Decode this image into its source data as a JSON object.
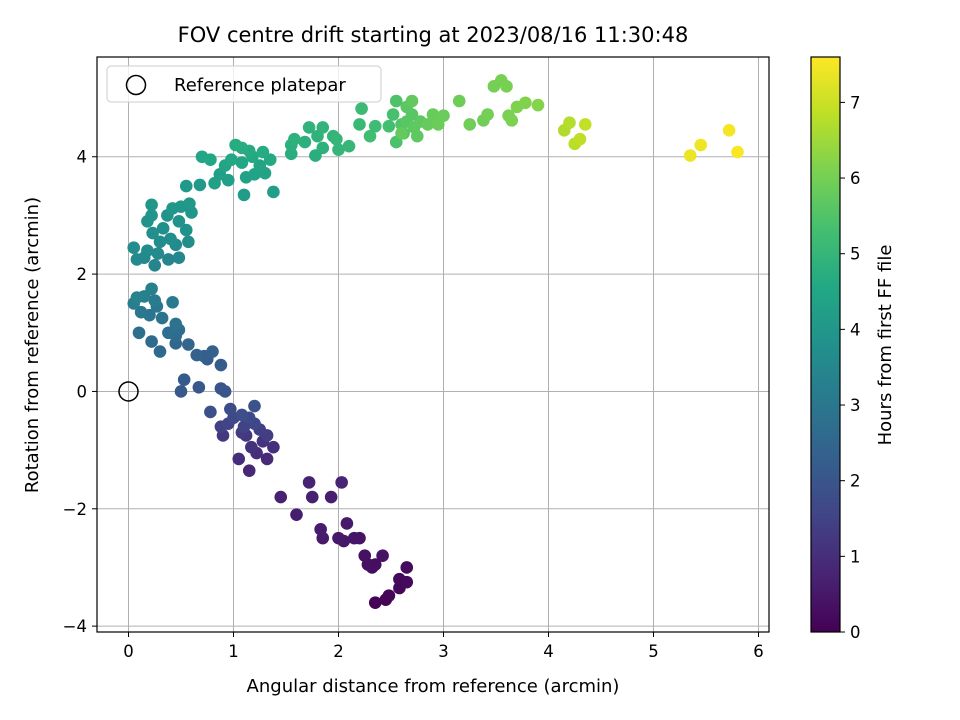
{
  "chart_data": {
    "type": "scatter",
    "title": "FOV centre drift starting at 2023/08/16 11:30:48",
    "xlabel": "Angular distance from reference (arcmin)",
    "ylabel": "Rotation from reference (arcmin)",
    "xlim": [
      -0.3,
      6.1
    ],
    "ylim": [
      -4.1,
      5.7
    ],
    "xticks": [
      0,
      1,
      2,
      3,
      4,
      5,
      6
    ],
    "xtick_labels": [
      "0",
      "1",
      "2",
      "3",
      "4",
      "5",
      "6"
    ],
    "yticks": [
      -4,
      -2,
      0,
      2,
      4
    ],
    "ytick_labels": [
      "−4",
      "−2",
      "0",
      "2",
      "4"
    ],
    "grid": true,
    "legend": {
      "position": "top-left",
      "entries": [
        "Reference platepar"
      ]
    },
    "reference_point": {
      "x": 0,
      "y": 0,
      "marker": "open-circle"
    },
    "colorbar": {
      "label": "Hours from first FF file",
      "colormap": "viridis",
      "range": [
        0,
        7.6
      ],
      "ticks": [
        0,
        1,
        2,
        3,
        4,
        5,
        6,
        7
      ],
      "tick_labels": [
        "0",
        "1",
        "2",
        "3",
        "4",
        "5",
        "6",
        "7"
      ]
    },
    "points_columns": [
      "x",
      "y",
      "hours"
    ],
    "points": [
      [
        2.35,
        -3.6,
        0.05
      ],
      [
        2.45,
        -3.55,
        0.08
      ],
      [
        2.48,
        -3.48,
        0.1
      ],
      [
        2.58,
        -3.35,
        0.13
      ],
      [
        2.58,
        -3.2,
        0.16
      ],
      [
        2.65,
        -3.25,
        0.19
      ],
      [
        2.65,
        -3.0,
        0.22
      ],
      [
        2.32,
        -3.0,
        0.25
      ],
      [
        2.35,
        -2.95,
        0.28
      ],
      [
        2.28,
        -2.95,
        0.31
      ],
      [
        2.25,
        -2.8,
        0.34
      ],
      [
        2.42,
        -2.8,
        0.37
      ],
      [
        2.2,
        -2.5,
        0.4
      ],
      [
        2.15,
        -2.5,
        0.43
      ],
      [
        2.05,
        -2.55,
        0.46
      ],
      [
        2.0,
        -2.5,
        0.49
      ],
      [
        2.08,
        -2.25,
        0.52
      ],
      [
        1.85,
        -2.5,
        0.55
      ],
      [
        1.83,
        -2.35,
        0.58
      ],
      [
        1.6,
        -2.1,
        0.61
      ],
      [
        1.93,
        -1.8,
        0.64
      ],
      [
        1.75,
        -1.8,
        0.67
      ],
      [
        1.45,
        -1.8,
        0.7
      ],
      [
        1.72,
        -1.55,
        0.73
      ],
      [
        2.03,
        -1.55,
        0.76
      ],
      [
        1.15,
        -1.35,
        0.85
      ],
      [
        1.32,
        -1.15,
        0.9
      ],
      [
        1.05,
        -1.15,
        0.95
      ],
      [
        1.22,
        -1.05,
        1.0
      ],
      [
        1.38,
        -0.95,
        1.05
      ],
      [
        1.17,
        -0.95,
        1.1
      ],
      [
        1.28,
        -0.85,
        1.15
      ],
      [
        1.12,
        -0.75,
        1.2
      ],
      [
        0.9,
        -0.75,
        1.25
      ],
      [
        1.08,
        -0.7,
        1.3
      ],
      [
        1.32,
        -0.75,
        1.35
      ],
      [
        1.25,
        -0.65,
        1.4
      ],
      [
        0.88,
        -0.6,
        1.45
      ],
      [
        1.1,
        -0.6,
        1.5
      ],
      [
        0.95,
        -0.55,
        1.55
      ],
      [
        1.2,
        -0.55,
        1.6
      ],
      [
        1.0,
        -0.45,
        1.65
      ],
      [
        1.15,
        -0.45,
        1.7
      ],
      [
        0.97,
        -0.3,
        1.75
      ],
      [
        1.08,
        -0.4,
        1.8
      ],
      [
        0.78,
        -0.35,
        1.85
      ],
      [
        1.2,
        -0.25,
        1.9
      ],
      [
        0.88,
        0.05,
        1.95
      ],
      [
        0.92,
        0.0,
        2.0
      ],
      [
        0.67,
        0.07,
        2.05
      ],
      [
        0.5,
        0.0,
        2.1
      ],
      [
        0.53,
        0.2,
        2.15
      ],
      [
        0.88,
        0.45,
        2.2
      ],
      [
        0.75,
        0.55,
        2.25
      ],
      [
        0.72,
        0.6,
        2.3
      ],
      [
        0.8,
        0.68,
        2.35
      ],
      [
        0.65,
        0.62,
        2.4
      ],
      [
        0.57,
        0.8,
        2.45
      ],
      [
        0.45,
        0.82,
        2.5
      ],
      [
        0.3,
        0.68,
        2.55
      ],
      [
        0.22,
        0.85,
        2.6
      ],
      [
        0.45,
        0.95,
        2.65
      ],
      [
        0.48,
        1.05,
        2.7
      ],
      [
        0.38,
        1.0,
        2.75
      ],
      [
        0.1,
        1.0,
        2.8
      ],
      [
        0.45,
        1.15,
        2.85
      ],
      [
        0.32,
        1.25,
        2.9
      ],
      [
        0.2,
        1.3,
        2.95
      ],
      [
        0.12,
        1.35,
        3.0
      ],
      [
        0.27,
        1.45,
        3.05
      ],
      [
        0.42,
        1.52,
        3.1
      ],
      [
        0.25,
        1.55,
        3.15
      ],
      [
        0.05,
        1.5,
        3.2
      ],
      [
        0.15,
        1.62,
        3.25
      ],
      [
        0.22,
        1.75,
        3.3
      ],
      [
        0.08,
        1.6,
        3.35
      ],
      [
        0.25,
        2.15,
        3.4
      ],
      [
        0.38,
        2.25,
        3.45
      ],
      [
        0.48,
        2.28,
        3.5
      ],
      [
        0.15,
        2.28,
        3.52
      ],
      [
        0.08,
        2.25,
        3.55
      ],
      [
        0.28,
        2.35,
        3.58
      ],
      [
        0.45,
        2.5,
        3.6
      ],
      [
        0.18,
        2.4,
        3.62
      ],
      [
        0.05,
        2.45,
        3.65
      ],
      [
        0.3,
        2.55,
        3.68
      ],
      [
        0.57,
        2.55,
        3.7
      ],
      [
        0.4,
        2.6,
        3.72
      ],
      [
        0.23,
        2.7,
        3.75
      ],
      [
        0.33,
        2.78,
        3.78
      ],
      [
        0.55,
        2.75,
        3.8
      ],
      [
        0.18,
        2.9,
        3.82
      ],
      [
        0.48,
        2.9,
        3.85
      ],
      [
        0.37,
        3.0,
        3.88
      ],
      [
        0.22,
        3.0,
        3.9
      ],
      [
        0.6,
        3.05,
        3.92
      ],
      [
        0.42,
        3.12,
        3.95
      ],
      [
        0.5,
        3.15,
        3.98
      ],
      [
        0.22,
        3.18,
        4.0
      ],
      [
        0.58,
        3.2,
        4.02
      ],
      [
        0.55,
        3.5,
        4.05
      ],
      [
        0.68,
        3.52,
        4.1
      ],
      [
        1.1,
        3.35,
        4.15
      ],
      [
        1.38,
        3.4,
        4.2
      ],
      [
        0.82,
        3.55,
        4.25
      ],
      [
        0.95,
        3.6,
        4.28
      ],
      [
        0.87,
        3.7,
        4.3
      ],
      [
        1.12,
        3.65,
        4.33
      ],
      [
        1.2,
        3.7,
        4.36
      ],
      [
        1.3,
        3.72,
        4.39
      ],
      [
        1.25,
        3.85,
        4.42
      ],
      [
        0.92,
        3.85,
        4.45
      ],
      [
        1.08,
        3.9,
        4.48
      ],
      [
        0.7,
        4.0,
        4.5
      ],
      [
        0.78,
        3.95,
        4.52
      ],
      [
        0.98,
        3.95,
        4.55
      ],
      [
        1.18,
        4.0,
        4.58
      ],
      [
        1.35,
        3.95,
        4.6
      ],
      [
        1.15,
        4.1,
        4.62
      ],
      [
        1.28,
        4.08,
        4.65
      ],
      [
        1.02,
        4.2,
        4.68
      ],
      [
        1.08,
        4.15,
        4.7
      ],
      [
        1.55,
        4.05,
        4.72
      ],
      [
        1.78,
        4.02,
        4.75
      ],
      [
        1.55,
        4.2,
        4.78
      ],
      [
        1.68,
        4.25,
        4.8
      ],
      [
        1.85,
        4.15,
        4.82
      ],
      [
        1.58,
        4.3,
        4.85
      ],
      [
        1.8,
        4.35,
        4.88
      ],
      [
        1.72,
        4.5,
        4.9
      ],
      [
        1.85,
        4.5,
        4.92
      ],
      [
        1.95,
        4.35,
        4.95
      ],
      [
        2.0,
        4.12,
        4.98
      ],
      [
        1.98,
        4.3,
        5.0
      ],
      [
        2.1,
        4.18,
        5.02
      ],
      [
        2.2,
        4.55,
        5.1
      ],
      [
        2.22,
        4.82,
        5.15
      ],
      [
        2.35,
        4.52,
        5.2
      ],
      [
        2.3,
        4.35,
        5.25
      ],
      [
        2.48,
        4.52,
        5.3
      ],
      [
        2.52,
        4.72,
        5.35
      ],
      [
        2.55,
        4.25,
        5.4
      ],
      [
        2.55,
        4.95,
        5.45
      ],
      [
        2.6,
        4.55,
        5.5
      ],
      [
        2.62,
        4.4,
        5.55
      ],
      [
        2.65,
        4.6,
        5.6
      ],
      [
        2.7,
        4.72,
        5.62
      ],
      [
        2.65,
        4.85,
        5.65
      ],
      [
        2.72,
        4.5,
        5.68
      ],
      [
        2.75,
        4.35,
        5.7
      ],
      [
        2.78,
        4.6,
        5.72
      ],
      [
        2.7,
        4.95,
        5.75
      ],
      [
        2.6,
        4.4,
        5.78
      ],
      [
        2.85,
        4.55,
        5.8
      ],
      [
        2.9,
        4.72,
        5.82
      ],
      [
        3.0,
        4.7,
        5.85
      ],
      [
        2.95,
        4.55,
        5.88
      ],
      [
        3.15,
        4.95,
        5.9
      ],
      [
        3.25,
        4.55,
        5.92
      ],
      [
        3.38,
        4.62,
        5.95
      ],
      [
        3.42,
        4.72,
        5.98
      ],
      [
        3.48,
        5.2,
        6.0
      ],
      [
        3.55,
        5.3,
        6.02
      ],
      [
        3.6,
        5.2,
        6.05
      ],
      [
        3.62,
        4.7,
        6.08
      ],
      [
        3.65,
        4.62,
        6.1
      ],
      [
        3.7,
        4.85,
        6.12
      ],
      [
        3.78,
        4.92,
        6.15
      ],
      [
        3.9,
        4.88,
        6.18
      ],
      [
        4.15,
        4.45,
        6.7
      ],
      [
        4.2,
        4.58,
        6.75
      ],
      [
        4.25,
        4.22,
        6.8
      ],
      [
        4.3,
        4.3,
        6.85
      ],
      [
        4.35,
        4.55,
        6.9
      ],
      [
        5.35,
        4.02,
        7.4
      ],
      [
        5.45,
        4.2,
        7.45
      ],
      [
        5.72,
        4.45,
        7.5
      ],
      [
        5.8,
        4.08,
        7.55
      ]
    ]
  }
}
